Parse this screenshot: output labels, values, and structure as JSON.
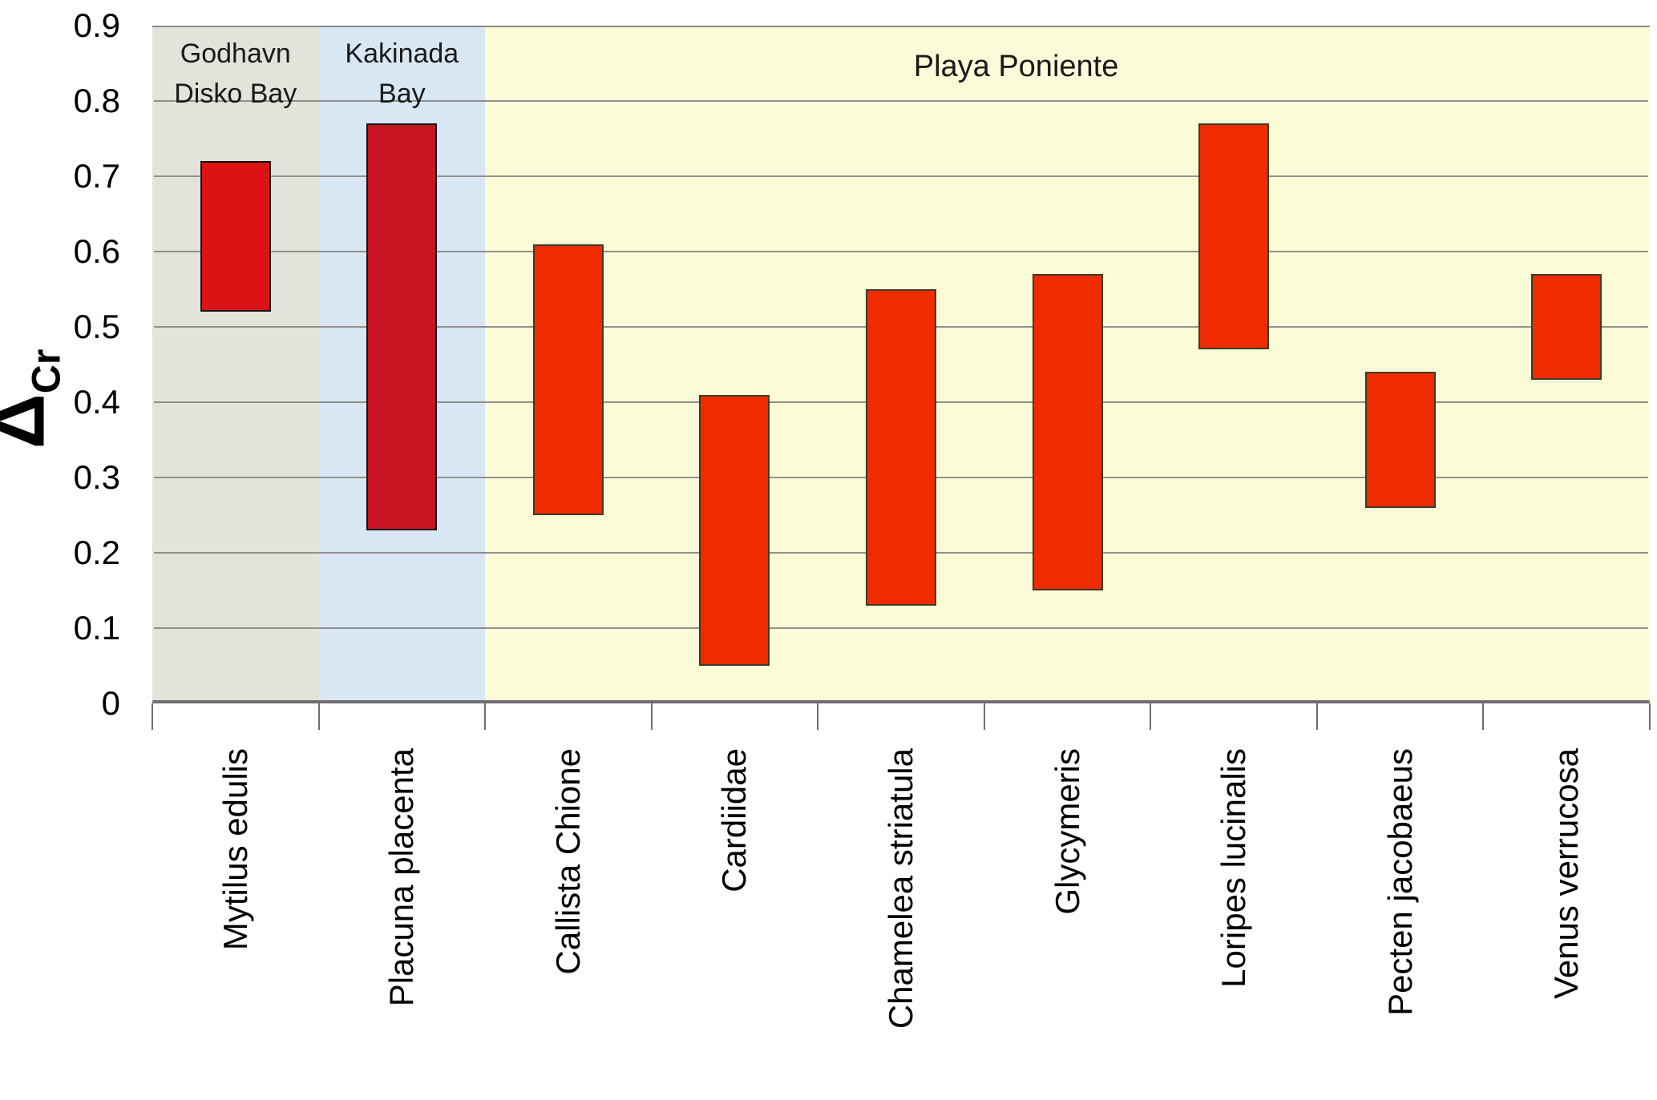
{
  "chart_data": {
    "type": "bar",
    "subtype": "floating-range-bars",
    "title": "",
    "ylabel": {
      "symbol": "Δ",
      "subscript": "Cr"
    },
    "xlabel": "",
    "ylim": [
      0,
      0.9
    ],
    "ytick_values": [
      0,
      0.1,
      0.2,
      0.3,
      0.4,
      0.5,
      0.6,
      0.7,
      0.8,
      0.9
    ],
    "ytick_labels": [
      "0",
      "0.1",
      "0.2",
      "0.3",
      "0.4",
      "0.5",
      "0.6",
      "0.7",
      "0.8",
      "0.9"
    ],
    "grid": "horizontal-on",
    "legend_position": "none",
    "categories": [
      "Mytilus edulis",
      "Placuna placenta",
      "Callista Chione",
      "Cardiidae",
      "Chamelea striatula",
      "Glycymeris",
      "Loripes lucinalis",
      "Pecten jacobaeus",
      "Venus verrucosa"
    ],
    "bars": [
      {
        "category": "Mytilus edulis",
        "region": "Godhavn Disko Bay",
        "low": 0.52,
        "high": 0.72,
        "fill": "#DC1315",
        "border": "#141414"
      },
      {
        "category": "Placuna placenta",
        "region": "Kakinada Bay",
        "low": 0.23,
        "high": 0.77,
        "fill": "#C81523",
        "border": "#141414"
      },
      {
        "category": "Callista Chione",
        "region": "Playa Poniente",
        "low": 0.25,
        "high": 0.61,
        "fill": "#F02B01",
        "border": "#3C3C22"
      },
      {
        "category": "Cardiidae",
        "region": "Playa Poniente",
        "low": 0.05,
        "high": 0.41,
        "fill": "#F02B01",
        "border": "#3C3C22"
      },
      {
        "category": "Chamelea striatula",
        "region": "Playa Poniente",
        "low": 0.13,
        "high": 0.55,
        "fill": "#F02B01",
        "border": "#3C3C22"
      },
      {
        "category": "Glycymeris",
        "region": "Playa Poniente",
        "low": 0.15,
        "high": 0.57,
        "fill": "#F02B01",
        "border": "#3C3C22"
      },
      {
        "category": "Loripes lucinalis",
        "region": "Playa Poniente",
        "low": 0.47,
        "high": 0.77,
        "fill": "#F02B01",
        "border": "#3C3C22"
      },
      {
        "category": "Pecten jacobaeus",
        "region": "Playa Poniente",
        "low": 0.26,
        "high": 0.44,
        "fill": "#F02B01",
        "border": "#3C3C22"
      },
      {
        "category": "Venus verrucosa",
        "region": "Playa Poniente",
        "low": 0.43,
        "high": 0.57,
        "fill": "#F02B01",
        "border": "#3C3C22"
      }
    ],
    "regions": [
      {
        "name": "Godhavn Disko Bay",
        "label_lines": [
          "Godhavn",
          "Disko Bay"
        ],
        "category_start": 0,
        "category_end": 0,
        "bg": "#E3E2DB"
      },
      {
        "name": "Kakinada Bay",
        "label_lines": [
          "Kakinada",
          "Bay"
        ],
        "category_start": 1,
        "category_end": 1,
        "bg": "#D9E7F4"
      },
      {
        "name": "Playa Poniente",
        "label_lines": [
          "Playa Poniente"
        ],
        "category_start": 2,
        "category_end": 8,
        "bg": "#FBFBD8"
      }
    ],
    "colors": {
      "gridline": "#90908C",
      "axis": "#6E6E6E",
      "plot_border": "#8A8A8A",
      "text": "#1A1A1A",
      "background": "#FFFFFF"
    }
  }
}
